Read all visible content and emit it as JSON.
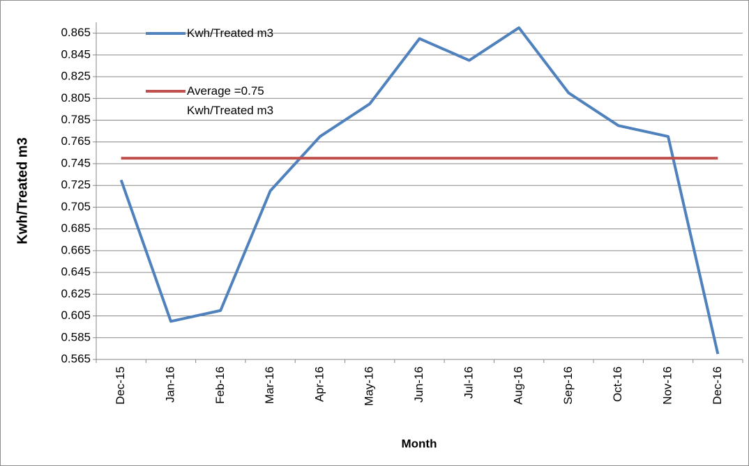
{
  "chart_data": {
    "type": "line",
    "y_label": "Kwh/Treated m3",
    "x_label": "Month",
    "categories": [
      "Dec-15",
      "Jan-16",
      "Feb-16",
      "Mar-16",
      "Apr-16",
      "May-16",
      "Jun-16",
      "Jul-16",
      "Aug-16",
      "Sep-16",
      "Oct-16",
      "Nov-16",
      "Dec-16"
    ],
    "series": [
      {
        "name": "Kwh/Treated m3",
        "color": "#4f81bd",
        "values": [
          0.73,
          0.6,
          0.61,
          0.72,
          0.77,
          0.8,
          0.86,
          0.84,
          0.87,
          0.81,
          0.78,
          0.77,
          0.57
        ]
      },
      {
        "name": "Average =0.75 Kwh/Treated m3",
        "color": "#c0504d",
        "values": [
          0.75,
          0.75,
          0.75,
          0.75,
          0.75,
          0.75,
          0.75,
          0.75,
          0.75,
          0.75,
          0.75,
          0.75,
          0.75
        ]
      }
    ],
    "ylim": [
      0.565,
      0.875
    ],
    "yticks": [
      0.565,
      0.585,
      0.605,
      0.625,
      0.645,
      0.665,
      0.685,
      0.705,
      0.725,
      0.745,
      0.765,
      0.785,
      0.805,
      0.825,
      0.845,
      0.865
    ],
    "grid": true
  }
}
